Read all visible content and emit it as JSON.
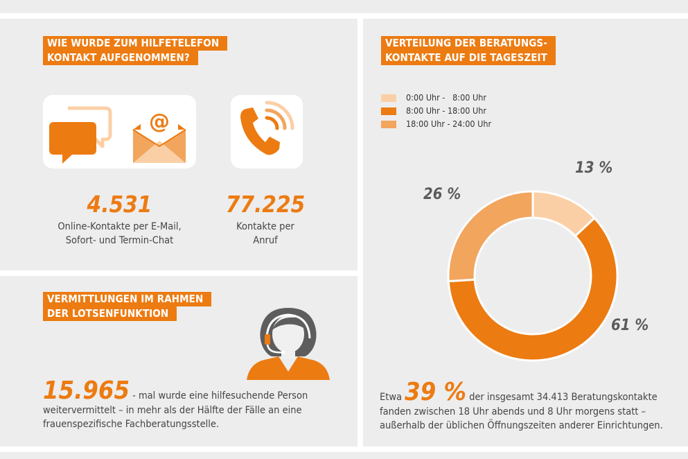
{
  "colors": {
    "accent": "#ec7b12",
    "medium": "#f2a55d",
    "light": "#fbcfa6",
    "panel": "#ededed"
  },
  "contact": {
    "heading": [
      "WIE WURDE ZUM HILFETELEFON",
      "KONTAKT AUFGENOMMEN?"
    ],
    "icons": [
      "chat-bubbles-icon",
      "email-envelope-icon",
      "phone-icon"
    ],
    "online": {
      "number": "4.531",
      "caption1": "Online-Kontakte per E-Mail,",
      "caption2": "Sofort- und Termin-Chat"
    },
    "phone": {
      "number": "77.225",
      "caption1": "Kontakte per",
      "caption2": "Anruf"
    }
  },
  "referral": {
    "heading": [
      "VERMITTLUNGEN IM RAHMEN",
      "DER LOTSENFUNKTION"
    ],
    "icon": "headset-agent-icon",
    "number": "15.965",
    "line1": " - mal wurde eine hilfesuchende Person",
    "line2": "weitervermittelt – in mehr als der Hälfte der Fälle an eine",
    "line3": "frauenspezifische Fachberatungsstelle."
  },
  "chart_data": {
    "type": "pie",
    "title": "VERTEILUNG DER BERATUNGS- KONTAKTE AUF DIE TAGESZEIT",
    "title_lines": [
      "VERTEILUNG DER BERATUNGS-",
      "KONTAKTE AUF DIE TAGESZEIT"
    ],
    "donut": true,
    "legend_position": "top-left",
    "slices": [
      {
        "label": "0:00 Uhr -   8:00 Uhr",
        "value": 13,
        "display": "13 %",
        "color": "#fbcfa6"
      },
      {
        "label": "8:00 Uhr - 18:00 Uhr",
        "value": 61,
        "display": "61 %",
        "color": "#ec7b12"
      },
      {
        "label": "18:00 Uhr - 24:00 Uhr",
        "value": 26,
        "display": "26 %",
        "color": "#f2a55d"
      }
    ]
  },
  "summary": {
    "prefix": "Etwa ",
    "big": "39 %",
    "line1": " der insgesamt 34.413 Beratungskontakte",
    "line2": "fanden zwischen 18 Uhr abends und 8 Uhr morgens statt –",
    "line3": "außerhalb der üblichen Öffnungszeiten anderer Einrichtungen."
  }
}
